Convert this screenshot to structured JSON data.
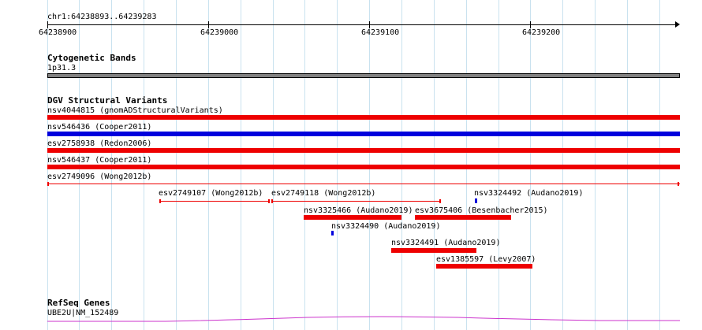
{
  "ruler": {
    "position_label": "chr1:64238893..64239283",
    "tick_labels": [
      "64238900",
      "64239000",
      "64239100",
      "64239200"
    ]
  },
  "cytoband": {
    "title": "Cytogenetic Bands",
    "band_label": "1p31.3",
    "band_color": "#808080"
  },
  "dgv": {
    "title": "DGV Structural Variants",
    "colors": {
      "loss": "#ee0000",
      "gain": "#0000dd"
    },
    "variants": [
      {
        "label": "nsv4044815 (gnomADStructuralVariants)",
        "color": "loss",
        "kind": "bar"
      },
      {
        "label": "nsv546436 (Cooper2011)",
        "color": "gain",
        "kind": "bar"
      },
      {
        "label": "esv2758938 (Redon2006)",
        "color": "loss",
        "kind": "bar"
      },
      {
        "label": "nsv546437 (Cooper2011)",
        "color": "loss",
        "kind": "bar"
      },
      {
        "label": "esv2749096 (Wong2012b)",
        "color": "loss",
        "kind": "line"
      },
      {
        "label": "esv2749107 (Wong2012b)",
        "color": "loss",
        "kind": "line"
      },
      {
        "label": "esv2749118 (Wong2012b)",
        "color": "loss",
        "kind": "line"
      },
      {
        "label": "nsv3324492 (Audano2019)",
        "color": "gain",
        "kind": "dot"
      },
      {
        "label": "nsv3325466 (Audano2019)",
        "color": "loss",
        "kind": "bar"
      },
      {
        "label": "esv3675406 (Besenbacher2015)",
        "color": "loss",
        "kind": "bar"
      },
      {
        "label": "nsv3324490 (Audano2019)",
        "color": "gain",
        "kind": "dot"
      },
      {
        "label": "nsv3324491 (Audano2019)",
        "color": "loss",
        "kind": "bar"
      },
      {
        "label": "esv1385597 (Levy2007)",
        "color": "loss",
        "kind": "bar"
      }
    ]
  },
  "refseq": {
    "title": "RefSeq Genes",
    "gene_label": "UBE2U|NM_152489",
    "line_color": "#cc33cc"
  }
}
